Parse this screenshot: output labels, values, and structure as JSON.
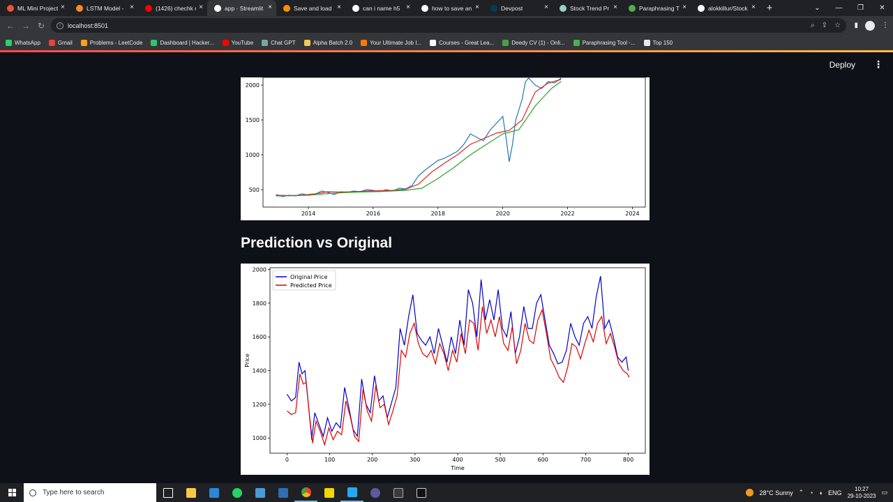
{
  "browser": {
    "tabs": [
      {
        "label": "ML Mini Project",
        "icon": "codespaces-icon",
        "color": "#f05032"
      },
      {
        "label": "LSTM Model - ",
        "icon": "blogger-icon",
        "color": "#ff8a1f"
      },
      {
        "label": "(1426) chechk o",
        "icon": "youtube-icon",
        "color": "#ff0000"
      },
      {
        "label": "app · Streamlit",
        "icon": "streamlit-icon",
        "color": "#ffffff",
        "active": true
      },
      {
        "label": "Save and load",
        "icon": "tensorflow-icon",
        "color": "#ff8f00"
      },
      {
        "label": "can i name h5",
        "icon": "google-icon",
        "color": "#ffffff"
      },
      {
        "label": "how to save an",
        "icon": "google-icon",
        "color": "#ffffff"
      },
      {
        "label": "Devpost",
        "icon": "devpost-icon",
        "color": "#003e54"
      },
      {
        "label": "Stock Trend Pr",
        "icon": "streamlit-icon",
        "color": "#9ad0c2"
      },
      {
        "label": "Paraphrasing T",
        "icon": "quillbot-icon",
        "color": "#4caf50"
      },
      {
        "label": "alokkillur/Stock",
        "icon": "github-icon",
        "color": "#ffffff"
      }
    ],
    "new_tab": "+",
    "url": "localhost:8501",
    "bookmarks": [
      {
        "label": "WhatsApp",
        "color": "#25d366"
      },
      {
        "label": "Gmail",
        "color": "#ea4335"
      },
      {
        "label": "Problems - LeetCode",
        "color": "#ffa116"
      },
      {
        "label": "Dashboard | Hacker...",
        "color": "#2ec866"
      },
      {
        "label": "YouTube",
        "color": "#ff0000"
      },
      {
        "label": "Chat GPT",
        "color": "#74aa9c"
      },
      {
        "label": "Alpha Batch 2.0",
        "color": "#f2c94c"
      },
      {
        "label": "Your Ultimate Job I...",
        "color": "#ff7a00"
      },
      {
        "label": "Courses - Great Lea...",
        "color": "#ffffff"
      },
      {
        "label": "Deedy CV (1) - Onli...",
        "color": "#47a141"
      },
      {
        "label": "Paraphrasing Tool -...",
        "color": "#4caf50"
      },
      {
        "label": "Top 150",
        "color": "#e8eaed"
      }
    ]
  },
  "app": {
    "deploy_label": "Deploy",
    "menu_icon": "kebab-menu-icon",
    "section_title": "Prediction vs Original"
  },
  "chart_data": [
    {
      "type": "line",
      "title": "",
      "xlabel": "",
      "ylabel": "",
      "x_ticks": [
        "2014",
        "2016",
        "2018",
        "2020",
        "2022",
        "2024"
      ],
      "y_ticks": [
        500,
        1000,
        1500,
        2000
      ],
      "xlim": [
        2012.6,
        2024.4
      ],
      "ylim": [
        250,
        2110
      ],
      "series": [
        {
          "color": "#1f77b4",
          "x": [
            2013.0,
            2013.2,
            2013.4,
            2013.6,
            2013.8,
            2014.0,
            2014.2,
            2014.4,
            2014.6,
            2014.8,
            2015.0,
            2015.2,
            2015.4,
            2015.6,
            2015.8,
            2016.0,
            2016.2,
            2016.4,
            2016.6,
            2016.8,
            2017.0,
            2017.2,
            2017.4,
            2017.6,
            2017.8,
            2018.0,
            2018.2,
            2018.4,
            2018.6,
            2018.8,
            2019.0,
            2019.2,
            2019.4,
            2019.6,
            2019.8,
            2020.0,
            2020.1,
            2020.2,
            2020.3,
            2020.4,
            2020.5,
            2020.6,
            2020.7,
            2020.8,
            2021.0,
            2021.2,
            2021.4,
            2021.6,
            2021.8
          ],
          "y": [
            430,
            400,
            420,
            410,
            440,
            420,
            430,
            480,
            460,
            430,
            470,
            460,
            480,
            470,
            500,
            490,
            470,
            500,
            480,
            520,
            510,
            560,
            700,
            780,
            850,
            920,
            950,
            1000,
            1050,
            1150,
            1300,
            1250,
            1200,
            1350,
            1450,
            1550,
            1250,
            900,
            1150,
            1500,
            1650,
            1800,
            2050,
            2100,
            2000,
            1950,
            2050,
            2030,
            2100
          ]
        },
        {
          "color": "#d62728",
          "x": [
            2013.0,
            2013.4,
            2013.8,
            2014.2,
            2014.6,
            2015.0,
            2015.4,
            2015.8,
            2016.2,
            2016.6,
            2017.0,
            2017.4,
            2017.8,
            2018.2,
            2018.6,
            2019.0,
            2019.4,
            2019.8,
            2020.2,
            2020.6,
            2021.0,
            2021.4,
            2021.8
          ],
          "y": [
            420,
            415,
            420,
            440,
            470,
            465,
            470,
            480,
            485,
            490,
            505,
            580,
            750,
            880,
            1000,
            1150,
            1230,
            1310,
            1350,
            1500,
            1900,
            2030,
            2080
          ]
        },
        {
          "color": "#2ca02c",
          "x": [
            2013.0,
            2013.5,
            2014.0,
            2014.5,
            2015.0,
            2015.5,
            2016.0,
            2016.5,
            2017.0,
            2017.5,
            2018.0,
            2018.5,
            2019.0,
            2019.5,
            2020.0,
            2020.5,
            2021.0,
            2021.5,
            2021.8
          ],
          "y": [
            410,
            412,
            420,
            440,
            455,
            465,
            470,
            478,
            490,
            520,
            660,
            820,
            1000,
            1150,
            1300,
            1360,
            1700,
            1950,
            2050
          ]
        }
      ]
    },
    {
      "type": "line",
      "title": "",
      "xlabel": "Time",
      "ylabel": "Price",
      "x_ticks": [
        0,
        100,
        200,
        300,
        400,
        500,
        600,
        700,
        800
      ],
      "y_ticks": [
        1000,
        1200,
        1400,
        1600,
        1800,
        2000
      ],
      "xlim": [
        -40,
        840
      ],
      "ylim": [
        910,
        2010
      ],
      "legend": "upper-left",
      "series": [
        {
          "name": "Original Price",
          "color": "#0000cc",
          "x": [
            0,
            10,
            20,
            28,
            35,
            42,
            50,
            58,
            65,
            75,
            85,
            95,
            105,
            115,
            125,
            135,
            145,
            155,
            165,
            175,
            185,
            195,
            205,
            215,
            225,
            235,
            245,
            255,
            265,
            275,
            285,
            295,
            305,
            315,
            325,
            335,
            345,
            355,
            365,
            375,
            385,
            395,
            405,
            415,
            425,
            435,
            445,
            455,
            465,
            475,
            485,
            495,
            505,
            515,
            525,
            535,
            545,
            555,
            565,
            575,
            585,
            595,
            605,
            615,
            625,
            635,
            645,
            655,
            665,
            675,
            685,
            695,
            705,
            715,
            725,
            735,
            745,
            755,
            765,
            775,
            785,
            795,
            800
          ],
          "y": [
            1260,
            1220,
            1240,
            1450,
            1380,
            1400,
            1200,
            990,
            1150,
            1080,
            1010,
            1120,
            1040,
            1090,
            1060,
            1300,
            1180,
            1050,
            1010,
            1350,
            1200,
            1150,
            1370,
            1220,
            1250,
            1120,
            1210,
            1300,
            1650,
            1550,
            1720,
            1850,
            1620,
            1580,
            1550,
            1600,
            1500,
            1650,
            1550,
            1450,
            1600,
            1500,
            1700,
            1550,
            1880,
            1800,
            1600,
            1940,
            1700,
            1820,
            1700,
            1880,
            1650,
            1600,
            1750,
            1500,
            1600,
            1780,
            1650,
            1650,
            1800,
            1850,
            1700,
            1550,
            1500,
            1440,
            1450,
            1520,
            1680,
            1600,
            1550,
            1680,
            1720,
            1650,
            1840,
            1960,
            1650,
            1700,
            1600,
            1480,
            1450,
            1480,
            1400
          ]
        },
        {
          "name": "Predicted Price",
          "color": "#dd0000",
          "x": [
            0,
            10,
            20,
            30,
            38,
            45,
            52,
            60,
            68,
            78,
            88,
            98,
            108,
            118,
            128,
            138,
            148,
            158,
            168,
            178,
            188,
            198,
            208,
            218,
            228,
            238,
            248,
            258,
            268,
            278,
            288,
            298,
            308,
            318,
            328,
            338,
            348,
            358,
            368,
            378,
            388,
            398,
            408,
            418,
            428,
            438,
            448,
            458,
            468,
            478,
            488,
            498,
            508,
            518,
            528,
            538,
            548,
            558,
            568,
            578,
            588,
            598,
            608,
            618,
            628,
            638,
            648,
            658,
            668,
            678,
            688,
            698,
            708,
            718,
            728,
            738,
            748,
            758,
            768,
            778,
            788,
            798,
            802
          ],
          "y": [
            1160,
            1140,
            1150,
            1380,
            1320,
            1330,
            1150,
            970,
            1100,
            1040,
            960,
            1060,
            990,
            1040,
            1020,
            1220,
            1130,
            1010,
            980,
            1290,
            1160,
            1100,
            1310,
            1180,
            1200,
            1080,
            1160,
            1250,
            1520,
            1480,
            1620,
            1680,
            1560,
            1500,
            1480,
            1520,
            1440,
            1560,
            1500,
            1400,
            1520,
            1450,
            1620,
            1500,
            1700,
            1680,
            1520,
            1780,
            1620,
            1700,
            1600,
            1720,
            1560,
            1520,
            1660,
            1440,
            1520,
            1680,
            1580,
            1560,
            1700,
            1760,
            1620,
            1470,
            1420,
            1360,
            1330,
            1420,
            1560,
            1540,
            1470,
            1560,
            1640,
            1570,
            1680,
            1720,
            1560,
            1620,
            1540,
            1440,
            1400,
            1380,
            1360
          ]
        }
      ]
    }
  ],
  "taskbar": {
    "search_placeholder": "Type here to search",
    "weather": "28°C  Sunny",
    "lang": "ENG",
    "time": "10:27",
    "date": "29-10-2023"
  }
}
